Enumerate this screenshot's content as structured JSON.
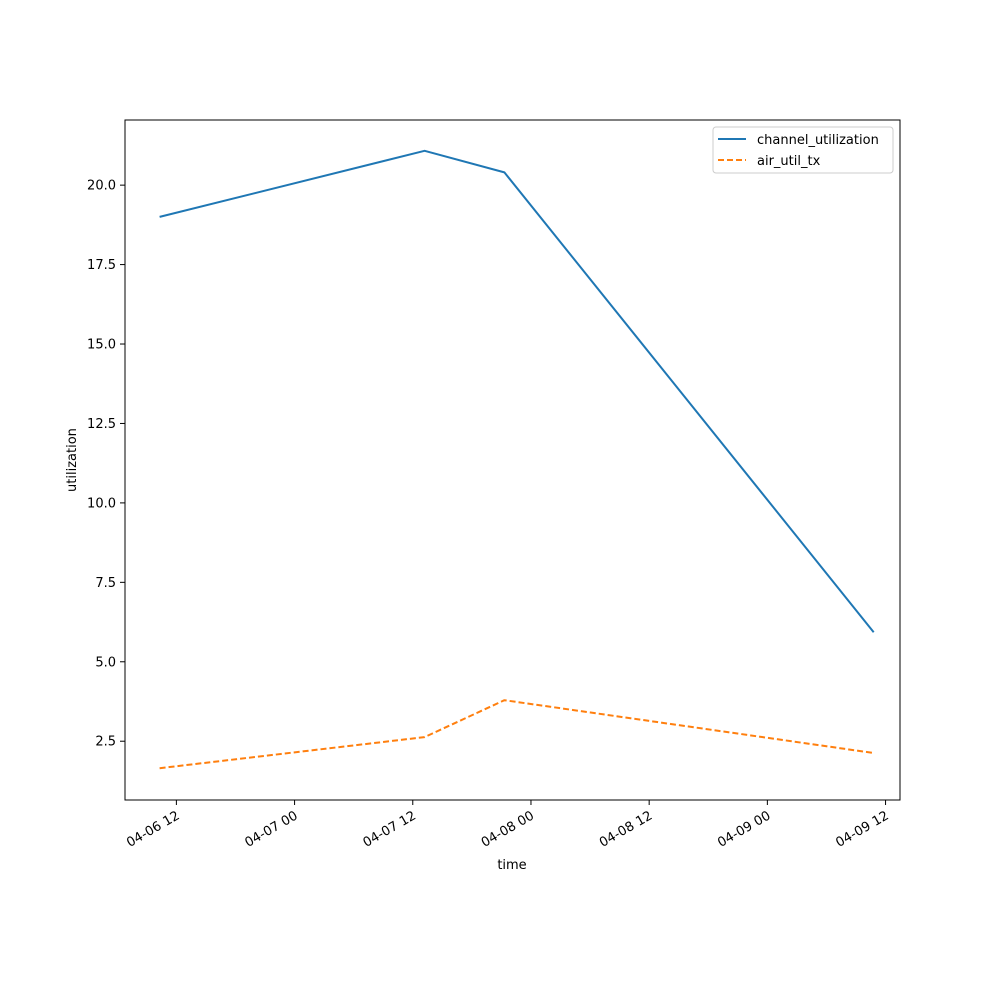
{
  "chart_data": {
    "type": "line",
    "title": "",
    "xlabel": "time",
    "ylabel": "utilization",
    "x_axis": {
      "type": "time",
      "range": [
        "2022-04-06 06:47",
        "2022-04-09 13:28"
      ],
      "ticks": [
        "2022-04-06 12:00",
        "2022-04-07 00:00",
        "2022-04-07 12:00",
        "2022-04-08 00:00",
        "2022-04-08 12:00",
        "2022-04-09 00:00",
        "2022-04-09 12:00"
      ],
      "tick_labels": [
        "04-06 12",
        "04-07 00",
        "04-07 12",
        "04-08 00",
        "04-08 12",
        "04-09 00",
        "04-09 12"
      ]
    },
    "y_axis": {
      "range": [
        0.65,
        22.05
      ],
      "ticks": [
        2.5,
        5.0,
        7.5,
        10.0,
        12.5,
        15.0,
        17.5,
        20.0
      ],
      "tick_labels": [
        "2.5",
        "5.0",
        "7.5",
        "10.0",
        "12.5",
        "15.0",
        "17.5",
        "20.0"
      ]
    },
    "grid": false,
    "legend": "top-right",
    "series": [
      {
        "name": "channel_utilization",
        "color": "#1f77b4",
        "style": "solid",
        "points": [
          {
            "x": "2022-04-06 10:18",
            "y": 19.0
          },
          {
            "x": "2022-04-07 13:12",
            "y": 21.08
          },
          {
            "x": "2022-04-07 21:18",
            "y": 20.4
          },
          {
            "x": "2022-04-09 10:48",
            "y": 5.93
          }
        ]
      },
      {
        "name": "air_util_tx",
        "color": "#ff7f0e",
        "style": "dashed",
        "points": [
          {
            "x": "2022-04-06 10:18",
            "y": 1.65
          },
          {
            "x": "2022-04-07 13:12",
            "y": 2.63
          },
          {
            "x": "2022-04-07 21:18",
            "y": 3.79
          },
          {
            "x": "2022-04-09 10:48",
            "y": 2.13
          }
        ]
      }
    ]
  }
}
